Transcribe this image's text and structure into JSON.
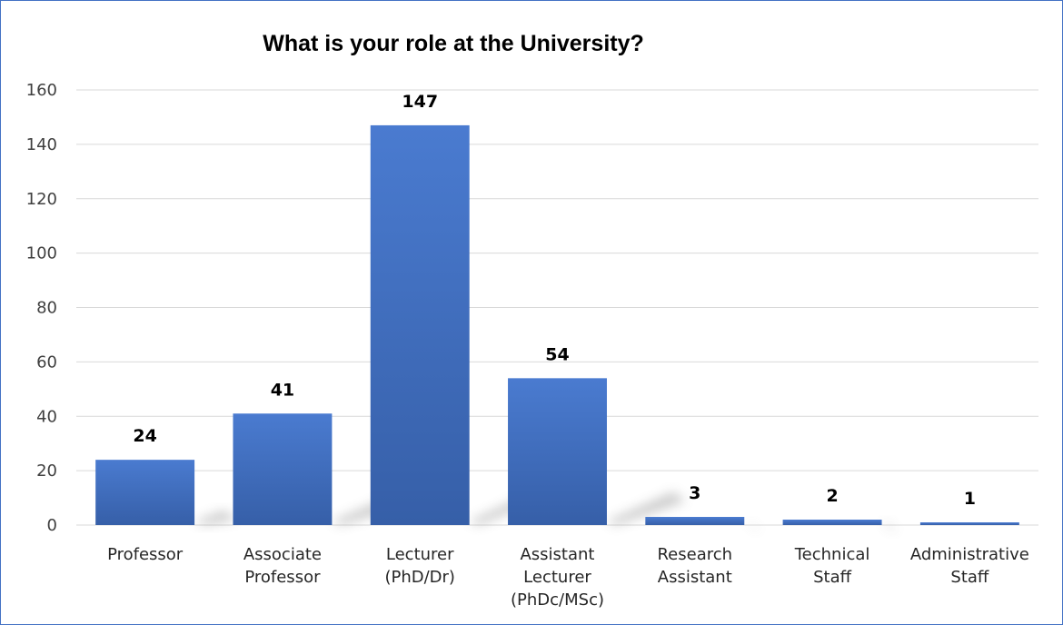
{
  "chart_data": {
    "type": "bar",
    "title": "What is your role at the University?",
    "categories": [
      [
        "Professor"
      ],
      [
        "Associate",
        "Professor"
      ],
      [
        "Lecturer",
        "(PhD/Dr)"
      ],
      [
        "Assistant",
        "Lecturer",
        "(PhDc/MSc)"
      ],
      [
        "Research",
        "Assistant"
      ],
      [
        "Technical",
        "Staff"
      ],
      [
        "Administrative",
        "Staff"
      ]
    ],
    "values": [
      24,
      41,
      147,
      54,
      3,
      2,
      1
    ],
    "data_labels": [
      "24",
      "41",
      "147",
      "54",
      "3",
      "2",
      "1"
    ],
    "yticks": [
      0,
      20,
      40,
      60,
      80,
      100,
      120,
      140,
      160
    ],
    "ylim": [
      0,
      160
    ],
    "xlabel": "",
    "ylabel": "",
    "grid": true,
    "legend": "none",
    "colors": {
      "bar": "#4472c4",
      "bar_dark": "#3a62ad",
      "grid": "#d9d9d9",
      "border": "#4472c4"
    }
  }
}
